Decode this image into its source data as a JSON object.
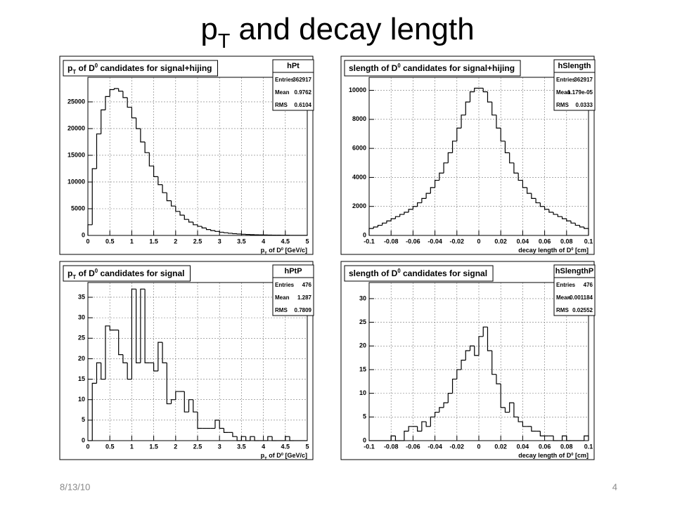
{
  "slide": {
    "title": [
      "p",
      "T",
      " and decay length"
    ],
    "date": "8/13/10",
    "page": "4"
  },
  "chart_data": [
    {
      "type": "histogram",
      "title": [
        "p",
        "T",
        " of D",
        "0",
        " candidates for signal+hijing"
      ],
      "stats": {
        "name": "hPt",
        "rows": [
          [
            "Entries",
            "362917"
          ],
          [
            "Mean",
            "0.9762"
          ],
          [
            "RMS",
            "0.6104"
          ]
        ]
      },
      "x_label": [
        "p",
        "T",
        " of D",
        "0",
        " [GeV/c]"
      ],
      "bins": [
        0,
        0.1,
        0.2,
        0.3,
        0.4,
        0.5,
        0.6,
        0.7,
        0.8,
        0.9,
        1,
        1.1,
        1.2,
        1.3,
        1.4,
        1.5,
        1.6,
        1.7,
        1.8,
        1.9,
        2,
        2.1,
        2.2,
        2.3,
        2.4,
        2.5,
        2.6,
        2.7,
        2.8,
        2.9,
        3,
        3.1,
        3.2,
        3.3,
        3.4,
        3.5,
        3.6,
        3.7,
        3.8,
        3.9,
        4,
        4.1,
        4.2,
        4.3,
        4.4,
        4.5,
        4.6,
        4.7,
        4.8,
        4.9,
        5
      ],
      "values": [
        2000,
        12500,
        19000,
        23500,
        26000,
        27300,
        27500,
        27000,
        25800,
        24000,
        22000,
        20000,
        17500,
        15500,
        13000,
        11000,
        9500,
        8000,
        6500,
        5500,
        4500,
        3800,
        3000,
        2500,
        2000,
        1700,
        1400,
        1100,
        900,
        750,
        600,
        500,
        400,
        330,
        270,
        220,
        180,
        150,
        120,
        100,
        80,
        65,
        55,
        45,
        35,
        30,
        25,
        20,
        15,
        12
      ],
      "xlim": [
        0,
        5
      ],
      "xticks": [
        0,
        0.5,
        1,
        1.5,
        2,
        2.5,
        3,
        3.5,
        4,
        4.5,
        5
      ],
      "ylim": [
        0,
        29600
      ],
      "yticks": [
        0,
        5000,
        10000,
        15000,
        20000,
        25000
      ],
      "grid": true,
      "color": "#000000"
    },
    {
      "type": "histogram",
      "title": [
        "slength of D",
        "0",
        " candidates for signal+hijing"
      ],
      "stats": {
        "name": "hSlength",
        "rows": [
          [
            "Entries",
            "362917"
          ],
          [
            "Mean",
            "-1.179e-05"
          ],
          [
            "RMS",
            "0.0333"
          ]
        ]
      },
      "x_label": [
        "decay length of D",
        "0",
        " [cm]"
      ],
      "bins": [
        -0.1,
        -0.096,
        -0.092,
        -0.088,
        -0.084,
        -0.08,
        -0.076,
        -0.072,
        -0.068,
        -0.064,
        -0.06,
        -0.056,
        -0.052,
        -0.048,
        -0.044,
        -0.04,
        -0.036,
        -0.032,
        -0.028,
        -0.024,
        -0.02,
        -0.016,
        -0.012,
        -0.008,
        -0.004,
        0,
        0.004,
        0.008,
        0.012,
        0.016,
        0.02,
        0.024,
        0.028,
        0.032,
        0.036,
        0.04,
        0.044,
        0.048,
        0.052,
        0.056,
        0.06,
        0.064,
        0.068,
        0.072,
        0.076,
        0.08,
        0.084,
        0.088,
        0.092,
        0.096,
        0.1
      ],
      "values": [
        480,
        580,
        700,
        850,
        1000,
        1150,
        1300,
        1450,
        1600,
        1800,
        2000,
        2250,
        2550,
        2900,
        3300,
        3800,
        4300,
        5000,
        5700,
        6500,
        7400,
        8300,
        9200,
        9900,
        10150,
        10150,
        9900,
        9200,
        8300,
        7400,
        6500,
        5700,
        5000,
        4300,
        3800,
        3300,
        2900,
        2550,
        2250,
        2000,
        1800,
        1600,
        1450,
        1300,
        1150,
        1000,
        850,
        700,
        580,
        480
      ],
      "xlim": [
        -0.1,
        0.1
      ],
      "xticks": [
        -0.1,
        -0.08,
        -0.06,
        -0.04,
        -0.02,
        0,
        0.02,
        0.04,
        0.06,
        0.08,
        0.1
      ],
      "ylim": [
        0,
        10900
      ],
      "yticks": [
        0,
        2000,
        4000,
        6000,
        8000,
        10000
      ],
      "grid": true,
      "color": "#000000"
    },
    {
      "type": "histogram",
      "title": [
        "p",
        "T",
        " of D",
        "0",
        " candidates for signal"
      ],
      "stats": {
        "name": "hPtP",
        "rows": [
          [
            "Entries",
            "476"
          ],
          [
            "Mean",
            "1.287"
          ],
          [
            "RMS",
            "0.7809"
          ]
        ]
      },
      "x_label": [
        "p",
        "T",
        " of D",
        "0",
        " [GeV/c]"
      ],
      "bins": [
        0,
        0.1,
        0.2,
        0.3,
        0.4,
        0.5,
        0.6,
        0.7,
        0.8,
        0.9,
        1,
        1.1,
        1.2,
        1.3,
        1.4,
        1.5,
        1.6,
        1.7,
        1.8,
        1.9,
        2,
        2.1,
        2.2,
        2.3,
        2.4,
        2.5,
        2.6,
        2.7,
        2.8,
        2.9,
        3,
        3.1,
        3.2,
        3.3,
        3.4,
        3.5,
        3.6,
        3.7,
        3.8,
        3.9,
        4,
        4.1,
        4.2,
        4.3,
        4.4,
        4.5,
        4.6,
        4.7,
        4.8,
        4.9,
        5
      ],
      "values": [
        0,
        14,
        19,
        15,
        28,
        27,
        27,
        21,
        19,
        15,
        37,
        19,
        37,
        19,
        19,
        17,
        24,
        19,
        9,
        10,
        12,
        12,
        7,
        10,
        7,
        3,
        3,
        3,
        3,
        5,
        3,
        2,
        2,
        1,
        0,
        1,
        0,
        1,
        0,
        0,
        0,
        1,
        0,
        0,
        0,
        1,
        0,
        0,
        0,
        0
      ],
      "xlim": [
        0,
        5
      ],
      "xticks": [
        0,
        0.5,
        1,
        1.5,
        2,
        2.5,
        3,
        3.5,
        4,
        4.5,
        5
      ],
      "ylim": [
        0,
        38.6
      ],
      "yticks": [
        0,
        5,
        10,
        15,
        20,
        25,
        30,
        35
      ],
      "grid": true,
      "color": "#000000"
    },
    {
      "type": "histogram",
      "title": [
        "slength of D",
        "0",
        " candidates for signal"
      ],
      "stats": {
        "name": "hSlengthP",
        "rows": [
          [
            "Entries",
            "476"
          ],
          [
            "Mean",
            "-0.001184"
          ],
          [
            "RMS",
            "0.02552"
          ]
        ]
      },
      "x_label": [
        "decay length of D",
        "0",
        " [cm]"
      ],
      "bins": [
        -0.1,
        -0.096,
        -0.092,
        -0.088,
        -0.084,
        -0.08,
        -0.076,
        -0.072,
        -0.068,
        -0.064,
        -0.06,
        -0.056,
        -0.052,
        -0.048,
        -0.044,
        -0.04,
        -0.036,
        -0.032,
        -0.028,
        -0.024,
        -0.02,
        -0.016,
        -0.012,
        -0.008,
        -0.004,
        0,
        0.004,
        0.008,
        0.012,
        0.016,
        0.02,
        0.024,
        0.028,
        0.032,
        0.036,
        0.04,
        0.044,
        0.048,
        0.052,
        0.056,
        0.06,
        0.064,
        0.068,
        0.072,
        0.076,
        0.08,
        0.084,
        0.088,
        0.092,
        0.096,
        0.1
      ],
      "values": [
        0,
        0,
        0,
        0,
        0,
        1,
        0,
        0,
        2,
        3,
        3,
        2,
        4,
        3,
        5,
        6,
        7,
        8,
        10,
        13,
        15,
        17,
        19,
        20,
        18,
        22,
        24,
        19,
        14,
        12,
        7,
        6,
        8,
        5,
        4,
        3,
        3,
        2,
        2,
        1,
        1,
        1,
        0,
        0,
        1,
        0,
        0,
        0,
        0,
        1
      ],
      "xlim": [
        -0.1,
        0.1
      ],
      "xticks": [
        -0.1,
        -0.08,
        -0.06,
        -0.04,
        -0.02,
        0,
        0.02,
        0.04,
        0.06,
        0.08,
        0.1
      ],
      "ylim": [
        0,
        33.4
      ],
      "yticks": [
        0,
        5,
        10,
        15,
        20,
        25,
        30
      ],
      "grid": true,
      "color": "#000000"
    }
  ]
}
